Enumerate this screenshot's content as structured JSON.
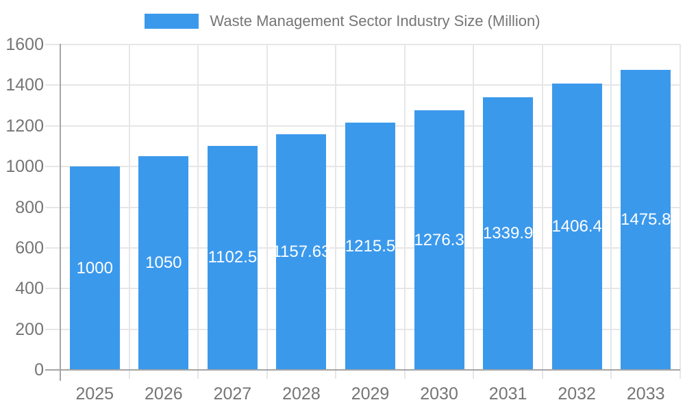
{
  "chart_data": {
    "type": "bar",
    "title": "",
    "legend": "Waste Management Sector Industry Size (Million)",
    "legend_position": "top",
    "categories": [
      "2025",
      "2026",
      "2027",
      "2028",
      "2029",
      "2030",
      "2031",
      "2032",
      "2033"
    ],
    "values": [
      1000,
      1050,
      1102.5,
      1157.63,
      1215.5,
      1276.3,
      1339.9,
      1406.4,
      1475.8
    ],
    "value_labels": [
      "1000",
      "1050",
      "1102.5",
      "1157.63",
      "1215.5",
      "1276.3",
      "1339.9",
      "1406.4",
      "1475.8"
    ],
    "xlabel": "",
    "ylabel": "",
    "ylim": [
      0,
      1600
    ],
    "y_ticks": [
      0,
      200,
      400,
      600,
      800,
      1000,
      1200,
      1400,
      1600
    ],
    "grid": true,
    "colors": {
      "bar": "#3B99EC",
      "value_label": "#FFFFFF",
      "tick_label": "#757575",
      "legend_label": "#757575",
      "gridline": "#E6E6E6",
      "axis_line": "#A5A5A5",
      "background": "#FFFFFF"
    }
  }
}
